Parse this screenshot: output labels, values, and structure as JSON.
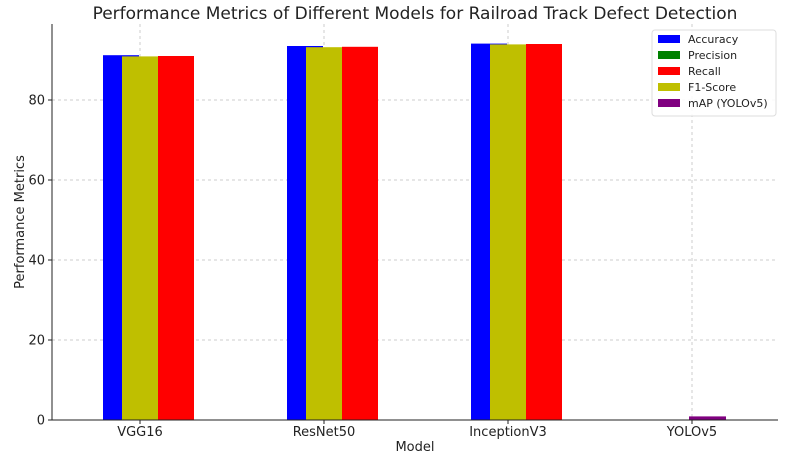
{
  "chart_data": {
    "type": "bar",
    "title": "Performance Metrics of Different Models for Railroad Track Defect Detection",
    "xlabel": "Model",
    "ylabel": "Performance Metrics",
    "categories": [
      "VGG16",
      "ResNet50",
      "InceptionV3",
      "YOLOv5"
    ],
    "ylim": [
      0,
      99
    ],
    "yticks": [
      0,
      20,
      40,
      60,
      80
    ],
    "grid": true,
    "legend_position": "top-right",
    "series": [
      {
        "name": "Accuracy",
        "color": "#0000ff",
        "values": [
          91.2,
          93.5,
          94.1,
          null
        ]
      },
      {
        "name": "Precision",
        "color": "#008000",
        "values": [
          90.8,
          93.1,
          93.8,
          null
        ]
      },
      {
        "name": "Recall",
        "color": "#ff0000",
        "values": [
          91.0,
          93.3,
          94.0,
          null
        ]
      },
      {
        "name": "F1-Score",
        "color": "#bfbf00",
        "values": [
          90.9,
          93.2,
          93.9,
          null
        ]
      },
      {
        "name": "mAP (YOLOv5)",
        "color": "#800080",
        "values": [
          null,
          null,
          null,
          0.9
        ]
      }
    ]
  }
}
